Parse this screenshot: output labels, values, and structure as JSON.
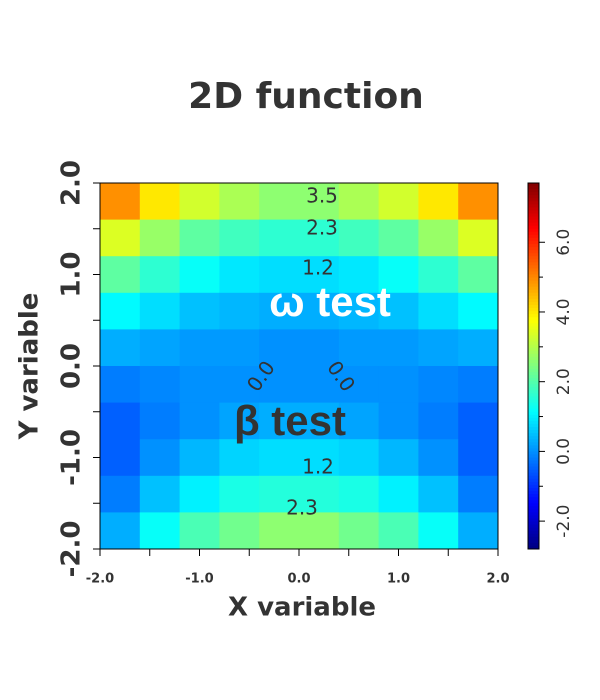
{
  "chart_data": {
    "type": "heatmap",
    "title": "2D function",
    "xlabel": "X variable",
    "ylabel": "Y variable",
    "x": [
      -1.8,
      -1.4,
      -1.0,
      -0.6,
      -0.2,
      0.2,
      0.6,
      1.0,
      1.4,
      1.8
    ],
    "y": [
      1.8,
      1.4,
      1.0,
      0.6,
      0.2,
      -0.2,
      -0.6,
      -1.0,
      -1.4,
      -1.8
    ],
    "z": [
      [
        4.9,
        4.0,
        3.3,
        2.9,
        2.6,
        2.6,
        2.9,
        3.3,
        4.0,
        4.9
      ],
      [
        3.4,
        2.7,
        2.1,
        1.8,
        1.6,
        1.6,
        1.8,
        2.1,
        2.7,
        3.4
      ],
      [
        2.1,
        1.6,
        1.2,
        0.9,
        0.8,
        0.8,
        0.9,
        1.2,
        1.6,
        2.1
      ],
      [
        1.1,
        0.8,
        0.5,
        0.4,
        0.3,
        0.3,
        0.4,
        0.5,
        0.8,
        1.1
      ],
      [
        0.3,
        0.2,
        0.1,
        0.1,
        0.0,
        0.0,
        0.1,
        0.1,
        0.2,
        0.3
      ],
      [
        -0.2,
        -0.1,
        0.0,
        0.0,
        0.0,
        0.0,
        0.0,
        0.0,
        -0.1,
        -0.2
      ],
      [
        -0.5,
        -0.2,
        0.0,
        0.2,
        0.3,
        0.3,
        0.2,
        0.0,
        -0.2,
        -0.5
      ],
      [
        -0.5,
        0.0,
        0.4,
        0.7,
        0.8,
        0.8,
        0.7,
        0.4,
        0.0,
        -0.5
      ],
      [
        -0.2,
        0.5,
        1.0,
        1.4,
        1.5,
        1.5,
        1.4,
        1.0,
        0.5,
        -0.2
      ],
      [
        0.3,
        1.2,
        1.9,
        2.3,
        2.6,
        2.6,
        2.3,
        1.9,
        1.2,
        0.3
      ]
    ],
    "xlim": [
      -2,
      2
    ],
    "ylim": [
      -2,
      2
    ],
    "zlim": [
      -2.8,
      7.7
    ],
    "xticks": [
      {
        "value": -2,
        "label": "-2.0"
      },
      {
        "value": -1,
        "label": "-1.0"
      },
      {
        "value": 0,
        "label": "0.0"
      },
      {
        "value": 1,
        "label": "1.0"
      },
      {
        "value": 2,
        "label": "2.0"
      }
    ],
    "yticks": [
      {
        "value": -2,
        "label": "-2.0"
      },
      {
        "value": -1,
        "label": "-1.0"
      },
      {
        "value": 0,
        "label": "0.0"
      },
      {
        "value": 1,
        "label": "1.0"
      },
      {
        "value": 2,
        "label": "2.0"
      }
    ],
    "zticks": [
      {
        "value": -2,
        "label": "-2.0"
      },
      {
        "value": 0,
        "label": "0.0"
      },
      {
        "value": 2,
        "label": "2.0"
      },
      {
        "value": 4,
        "label": "4.0"
      },
      {
        "value": 6,
        "label": "6.0"
      }
    ],
    "colormap": "jet",
    "contour_labels": [
      "3.5",
      "2.3",
      "1.2",
      "0.0",
      "0.0",
      "1.2",
      "2.3"
    ],
    "annotations": [
      "ω test",
      "β test"
    ]
  }
}
